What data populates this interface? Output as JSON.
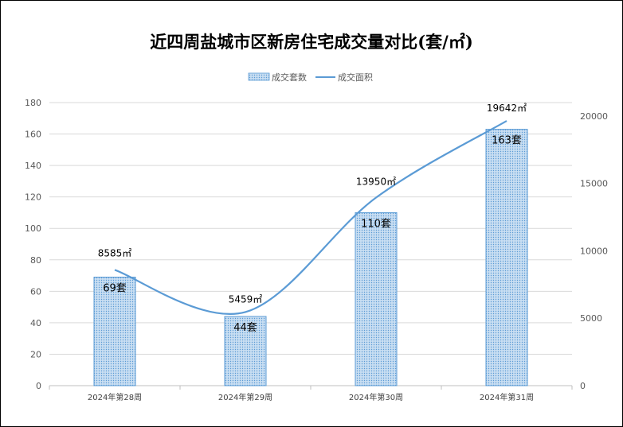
{
  "chart_data": {
    "type": "bar+line",
    "title": "近四周盐城市区新房住宅成交量对比(套/㎡)",
    "categories": [
      "2024年第28周",
      "2024年第29周",
      "2024年第30周",
      "2024年第31周"
    ],
    "series": [
      {
        "name": "成交套数",
        "type": "bar",
        "axis": "left",
        "values": [
          69,
          44,
          110,
          163
        ],
        "labels": [
          "69套",
          "44套",
          "110套",
          "163套"
        ]
      },
      {
        "name": "成交面积",
        "type": "line",
        "axis": "right",
        "values": [
          8585,
          5459,
          13950,
          19642
        ],
        "labels": [
          "8585㎡",
          "5459㎡",
          "13950㎡",
          "19642㎡"
        ]
      }
    ],
    "y_left": {
      "min": 0,
      "max": 180,
      "step": 20,
      "ticks": [
        "0",
        "20",
        "40",
        "60",
        "80",
        "100",
        "120",
        "140",
        "160",
        "180"
      ]
    },
    "y_right": {
      "min": 0,
      "max": 21000,
      "step": 5000,
      "ticks": [
        "0",
        "5000",
        "10000",
        "15000",
        "20000"
      ]
    },
    "grid": true,
    "legend_position": "top-center",
    "colors": {
      "bar_fill": "#bdd7ee",
      "bar_stroke": "#5b9bd5",
      "line": "#5b9bd5",
      "grid": "#d9d9d9"
    }
  }
}
